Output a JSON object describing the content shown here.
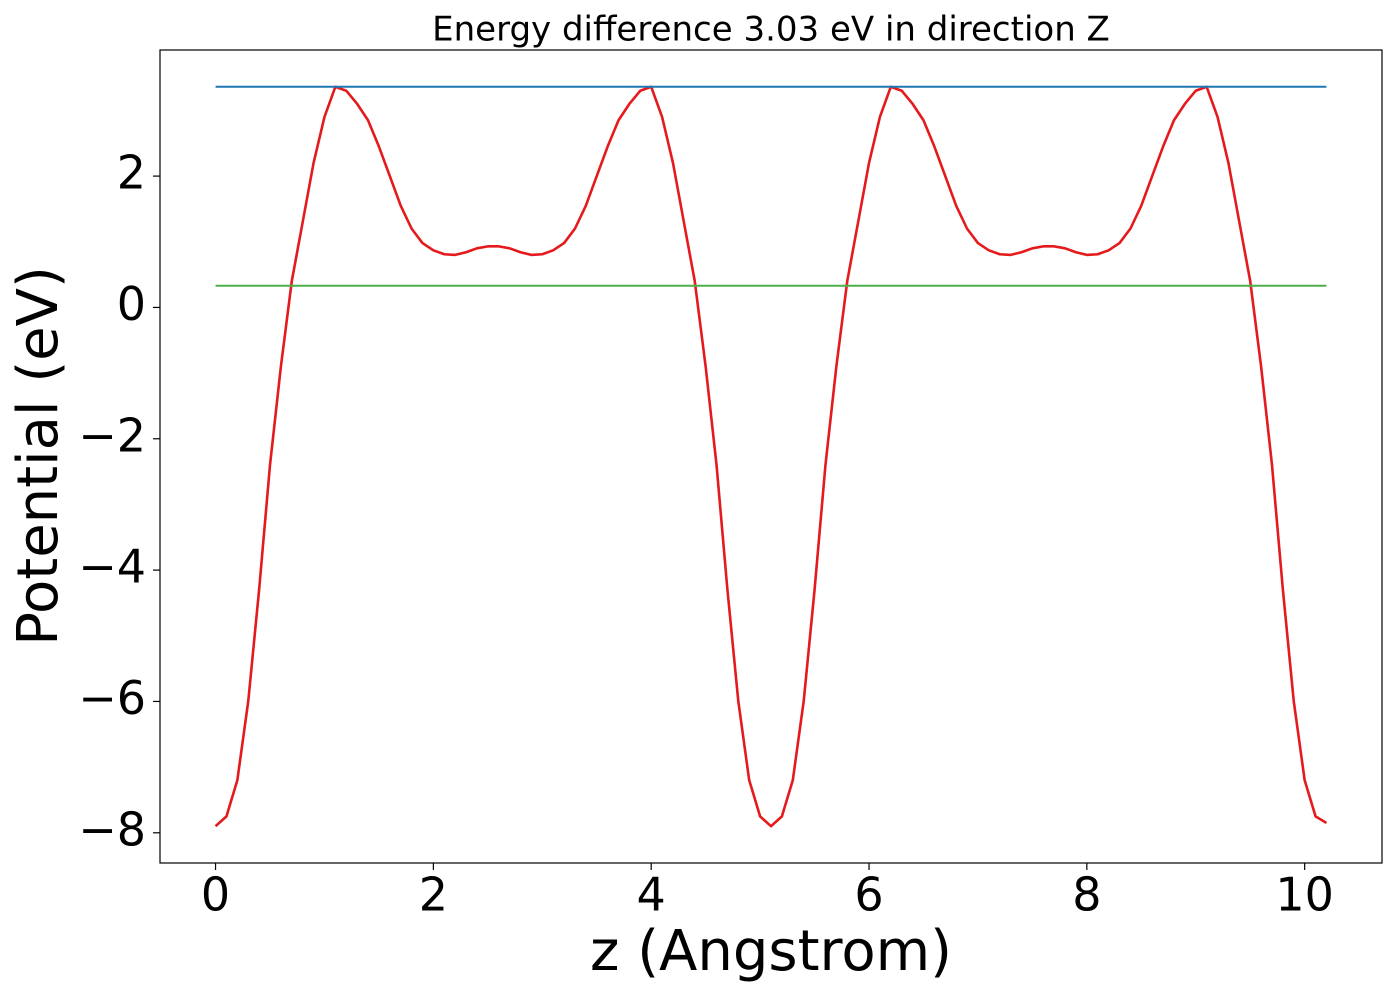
{
  "chart_data": {
    "type": "line",
    "title": "Energy difference 3.03 eV in direction Z",
    "x_label": "z (Angstrom)",
    "y_label": "Potential (eV)",
    "xlim": [
      -0.51,
      10.71
    ],
    "ylim": [
      -8.46,
      3.92
    ],
    "xticks": [
      0,
      2,
      4,
      6,
      8,
      10
    ],
    "yticks": [
      {
        "value": -8,
        "label": "−8"
      },
      {
        "value": -6,
        "label": "−6"
      },
      {
        "value": -4,
        "label": "−4"
      },
      {
        "value": -2,
        "label": "−2"
      },
      0,
      2
    ],
    "grid": false,
    "series": [
      {
        "color": "#e41a1c",
        "x": [
          0,
          0.1,
          0.2,
          0.3,
          0.4,
          0.5,
          0.6,
          0.7,
          0.8,
          0.9,
          1.0,
          1.1,
          1.2,
          1.3,
          1.4,
          1.5,
          1.6,
          1.7,
          1.8,
          1.9,
          2.0,
          2.1,
          2.2,
          2.3,
          2.4,
          2.5,
          2.6,
          2.7,
          2.8,
          2.9,
          3.0,
          3.1,
          3.2,
          3.3,
          3.4,
          3.5,
          3.6,
          3.7,
          3.8,
          3.9,
          4.0,
          4.1,
          4.2,
          4.3,
          4.4,
          4.5,
          4.6,
          4.7,
          4.8,
          4.9,
          5.0,
          5.1,
          5.2,
          5.3,
          5.4,
          5.5,
          5.6,
          5.7,
          5.8,
          5.9,
          6.0,
          6.1,
          6.2,
          6.3,
          6.4,
          6.5,
          6.6,
          6.7,
          6.8,
          6.9,
          7.0,
          7.1,
          7.2,
          7.3,
          7.4,
          7.5,
          7.6,
          7.7,
          7.8,
          7.9,
          8.0,
          8.1,
          8.2,
          8.3,
          8.4,
          8.5,
          8.6,
          8.7,
          8.8,
          8.9,
          9.0,
          9.1,
          9.2,
          9.3,
          9.4,
          9.5,
          9.6,
          9.7,
          9.8,
          9.9,
          10.0,
          10.1,
          10.2
        ],
        "values": [
          -7.9,
          -7.75,
          -7.2,
          -6.0,
          -4.3,
          -2.4,
          -0.9,
          0.4,
          1.3,
          2.2,
          2.9,
          3.36,
          3.3,
          3.1,
          2.85,
          2.45,
          2.0,
          1.55,
          1.2,
          0.98,
          0.87,
          0.81,
          0.8,
          0.84,
          0.9,
          0.93,
          0.93,
          0.9,
          0.84,
          0.8,
          0.81,
          0.87,
          0.98,
          1.2,
          1.55,
          2.0,
          2.45,
          2.85,
          3.1,
          3.3,
          3.36,
          2.9,
          2.2,
          1.3,
          0.4,
          -0.9,
          -2.4,
          -4.3,
          -6.0,
          -7.2,
          -7.75,
          -7.9,
          -7.75,
          -7.2,
          -6.0,
          -4.3,
          -2.4,
          -0.9,
          0.4,
          1.3,
          2.2,
          2.9,
          3.36,
          3.3,
          3.1,
          2.85,
          2.45,
          2.0,
          1.55,
          1.2,
          0.98,
          0.87,
          0.81,
          0.8,
          0.84,
          0.9,
          0.93,
          0.93,
          0.9,
          0.84,
          0.8,
          0.81,
          0.87,
          0.98,
          1.2,
          1.55,
          2.0,
          2.45,
          2.85,
          3.1,
          3.3,
          3.36,
          2.9,
          2.2,
          1.3,
          0.4,
          -0.9,
          -2.4,
          -4.3,
          -6.0,
          -7.2,
          -7.75,
          -7.85
        ]
      },
      {
        "color": "#1f77b4",
        "x": [
          0,
          10.2
        ],
        "values": [
          3.36,
          3.36
        ]
      },
      {
        "color": "#4daf4a",
        "x": [
          0,
          10.2
        ],
        "values": [
          0.33,
          0.33
        ]
      }
    ]
  }
}
